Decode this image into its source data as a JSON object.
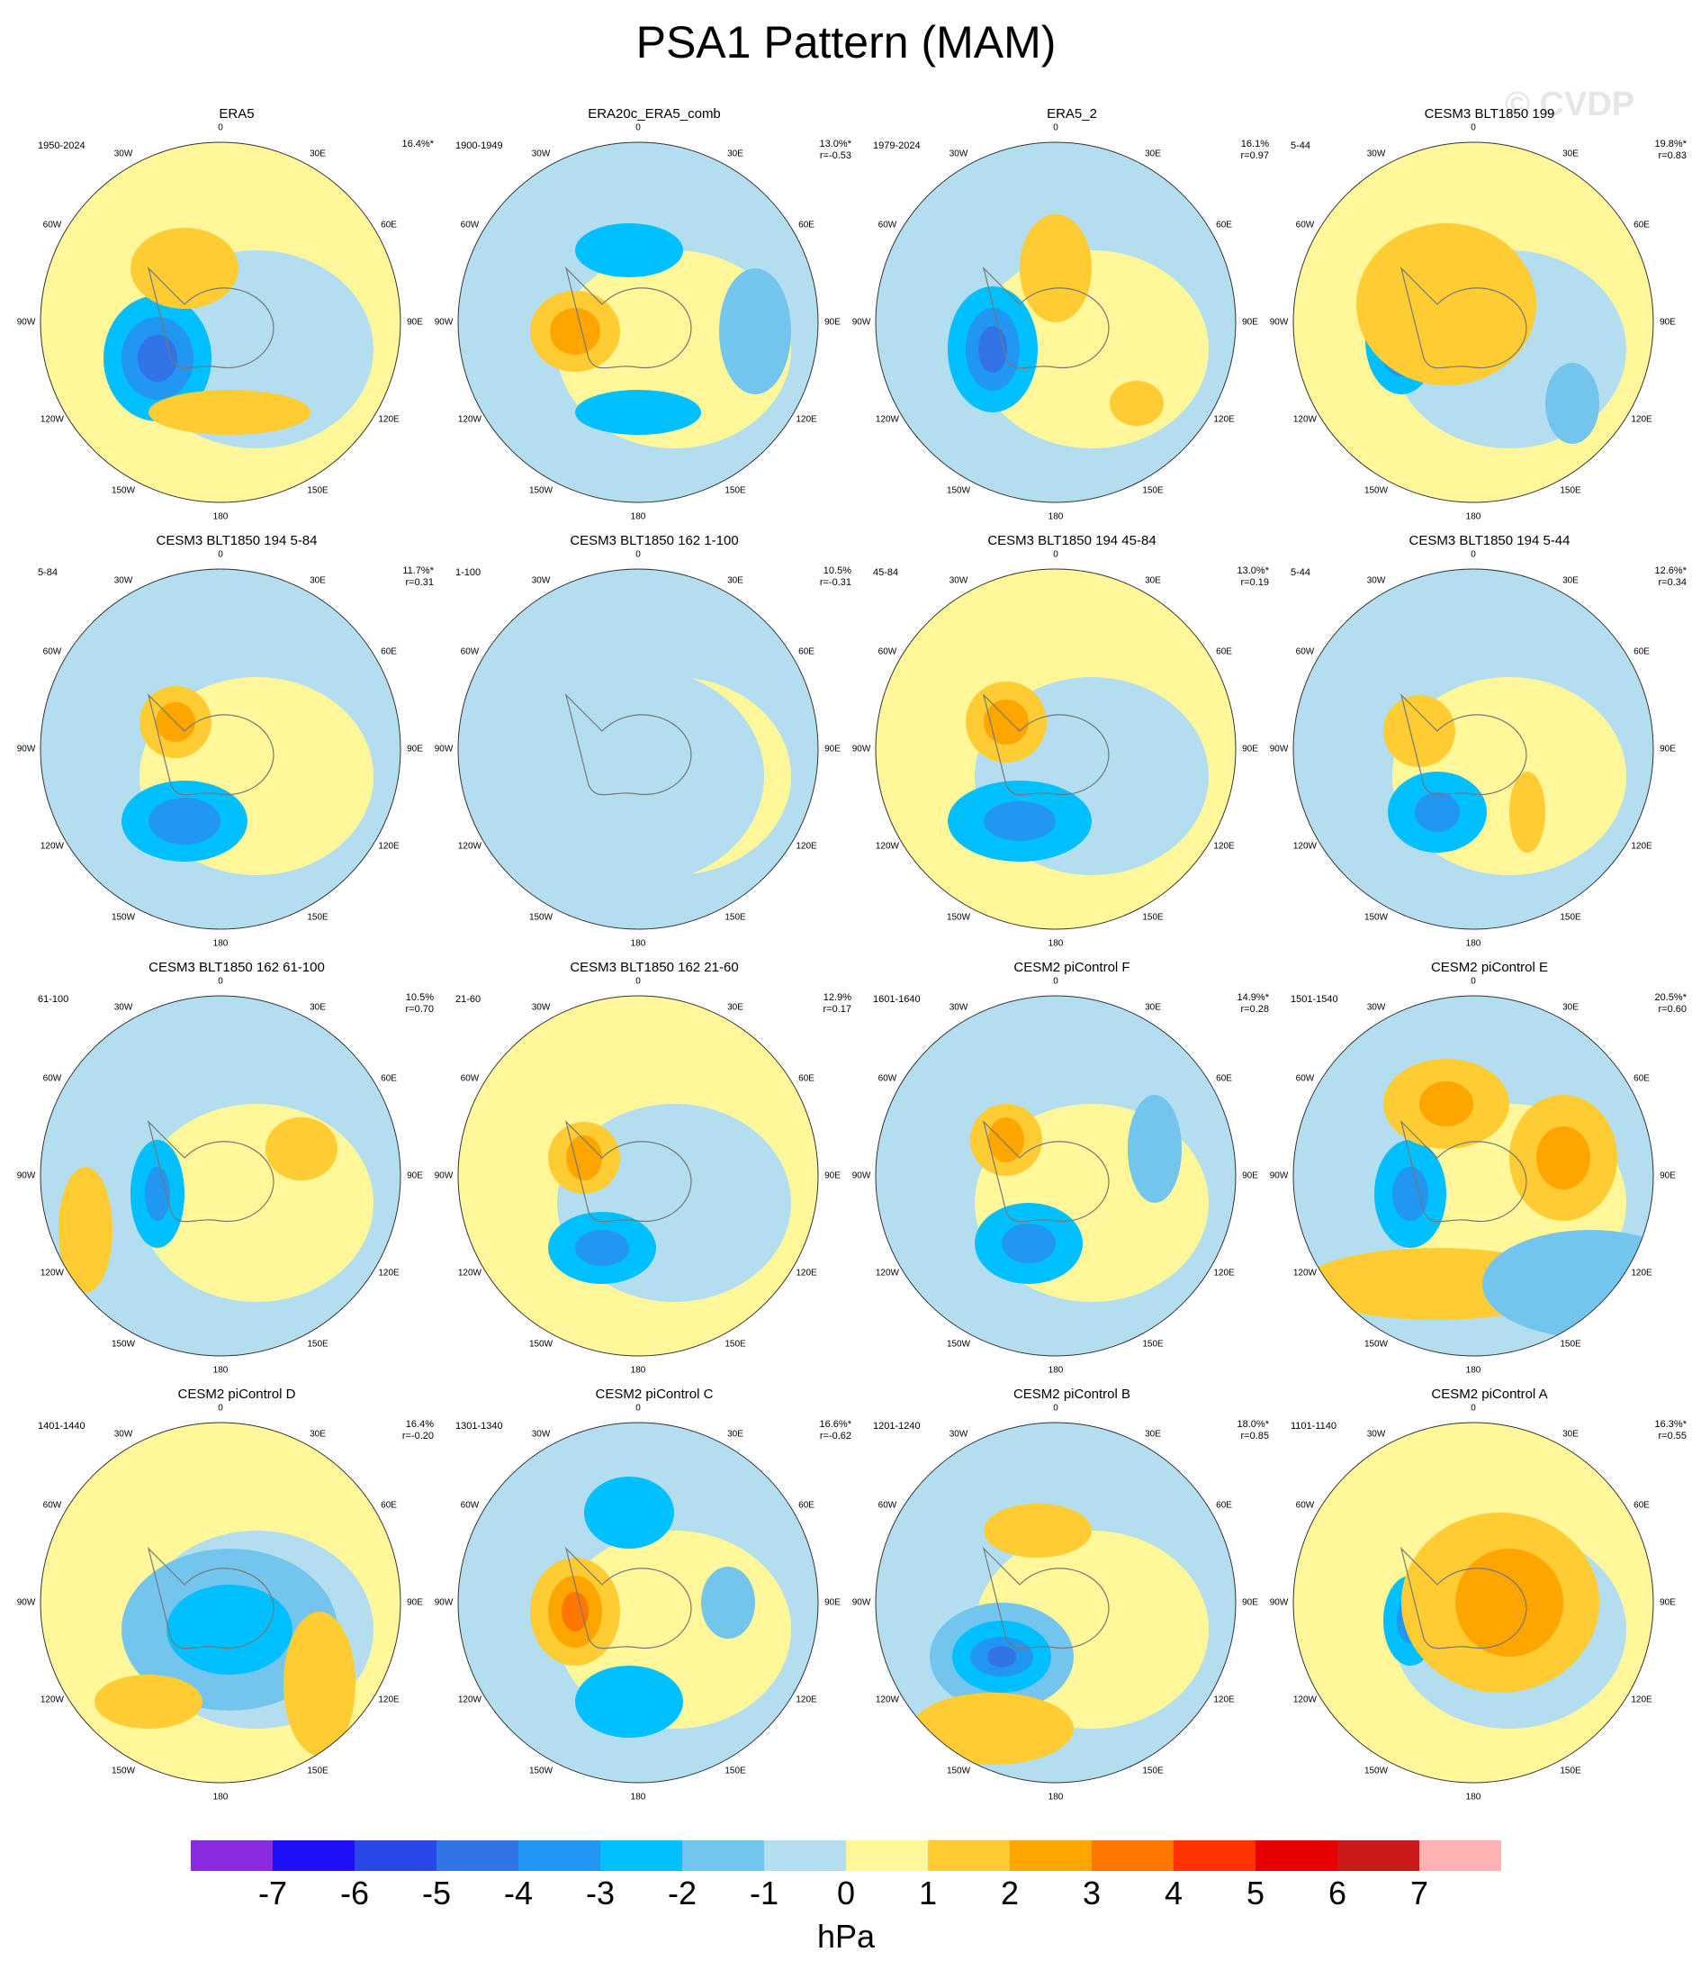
{
  "title": "PSA1 Pattern (MAM)",
  "watermark": "© CVDP",
  "longitude_labels": [
    "0",
    "30E",
    "60E",
    "90E",
    "120E",
    "150E",
    "180",
    "150W",
    "120W",
    "90W",
    "60W",
    "30W"
  ],
  "colorbar": {
    "unit": "hPa",
    "tick_labels": [
      "-7",
      "-6",
      "-5",
      "-4",
      "-3",
      "-2",
      "-1",
      "0",
      "1",
      "2",
      "3",
      "4",
      "5",
      "6",
      "7"
    ],
    "colors": [
      "#8a2be2",
      "#1f0ff5",
      "#2a48e8",
      "#3273e8",
      "#2196f3",
      "#00bfff",
      "#74c5ee",
      "#b3def0",
      "#fff799",
      "#ffcc33",
      "#ffa500",
      "#ff7700",
      "#ff3300",
      "#e60000",
      "#cc1a1a",
      "#ffb3b3"
    ]
  },
  "chart_data": [
    {
      "type": "heatmap",
      "title": "ERA5",
      "period": "1950-2024",
      "variance": "16.4%*",
      "corr": ""
    },
    {
      "type": "heatmap",
      "title": "ERA20c_ERA5_comb",
      "period": "1900-1949",
      "variance": "13.0%*",
      "corr": "r=-0.53"
    },
    {
      "type": "heatmap",
      "title": "ERA5_2",
      "period": "1979-2024",
      "variance": "16.1%",
      "corr": "r=0.97"
    },
    {
      "type": "heatmap",
      "title": "CESM3 BLT1850 199",
      "period": "5-44",
      "variance": "19.8%*",
      "corr": "r=0.83"
    },
    {
      "type": "heatmap",
      "title": "CESM3 BLT1850 194 5-84",
      "period": "5-84",
      "variance": "11.7%*",
      "corr": "r=0.31"
    },
    {
      "type": "heatmap",
      "title": "CESM3 BLT1850 162 1-100",
      "period": "1-100",
      "variance": "10.5%",
      "corr": "r=-0.31"
    },
    {
      "type": "heatmap",
      "title": "CESM3 BLT1850 194 45-84",
      "period": "45-84",
      "variance": "13.0%*",
      "corr": "r=0.19"
    },
    {
      "type": "heatmap",
      "title": "CESM3 BLT1850 194 5-44",
      "period": "5-44",
      "variance": "12.6%*",
      "corr": "r=0.34"
    },
    {
      "type": "heatmap",
      "title": "CESM3 BLT1850 162 61-100",
      "period": "61-100",
      "variance": "10.5%",
      "corr": "r=0.70"
    },
    {
      "type": "heatmap",
      "title": "CESM3 BLT1850 162 21-60",
      "period": "21-60",
      "variance": "12.9%",
      "corr": "r=0.17"
    },
    {
      "type": "heatmap",
      "title": "CESM2 piControl F",
      "period": "1601-1640",
      "variance": "14.9%*",
      "corr": "r=0.28"
    },
    {
      "type": "heatmap",
      "title": "CESM2 piControl E",
      "period": "1501-1540",
      "variance": "20.5%*",
      "corr": "r=0.60"
    },
    {
      "type": "heatmap",
      "title": "CESM2 piControl D",
      "period": "1401-1440",
      "variance": "16.4%",
      "corr": "r=-0.20"
    },
    {
      "type": "heatmap",
      "title": "CESM2 piControl C",
      "period": "1301-1340",
      "variance": "16.6%*",
      "corr": "r=-0.62"
    },
    {
      "type": "heatmap",
      "title": "CESM2 piControl B",
      "period": "1201-1240",
      "variance": "18.0%*",
      "corr": "r=0.85"
    },
    {
      "type": "heatmap",
      "title": "CESM2 piControl A",
      "period": "1101-1140",
      "variance": "16.3%*",
      "corr": "r=0.55"
    }
  ]
}
